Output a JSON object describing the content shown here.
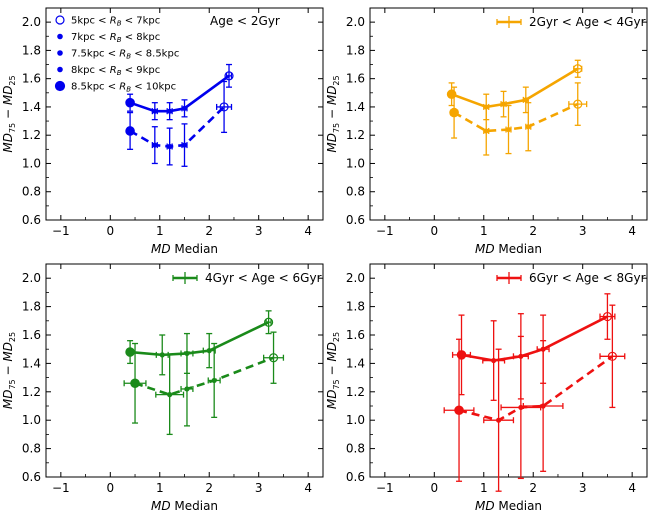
{
  "chart_data": [
    {
      "type": "line",
      "title": "Age < 2Gyr",
      "xlabel": "MD Median",
      "ylabel": "MD75 − MD25",
      "xlim": [
        -1.3,
        4.3
      ],
      "ylim": [
        0.6,
        2.1
      ],
      "xticks": [
        -1,
        0,
        1,
        2,
        3,
        4
      ],
      "yticks": [
        0.6,
        0.8,
        1.0,
        1.2,
        1.4,
        1.6,
        1.8,
        2.0
      ],
      "color": "#0000ee",
      "legend_title": "Age < 2Gyr",
      "series": [
        {
          "name": "upper",
          "style": "solid",
          "points": [
            {
              "x": 0.4,
              "y": 1.43,
              "xerr": 0.05,
              "yerr": 0.06
            },
            {
              "x": 0.9,
              "y": 1.37,
              "xerr": 0.05,
              "yerr": 0.06
            },
            {
              "x": 1.2,
              "y": 1.37,
              "xerr": 0.05,
              "yerr": 0.06
            },
            {
              "x": 1.5,
              "y": 1.39,
              "xerr": 0.05,
              "yerr": 0.06
            },
            {
              "x": 2.4,
              "y": 1.62,
              "xerr": 0.05,
              "yerr": 0.08
            }
          ]
        },
        {
          "name": "lower",
          "style": "dashed",
          "points": [
            {
              "x": 0.4,
              "y": 1.23,
              "xerr": 0.05,
              "yerr": 0.13
            },
            {
              "x": 0.9,
              "y": 1.13,
              "xerr": 0.05,
              "yerr": 0.13
            },
            {
              "x": 1.2,
              "y": 1.12,
              "xerr": 0.05,
              "yerr": 0.13
            },
            {
              "x": 1.5,
              "y": 1.13,
              "xerr": 0.05,
              "yerr": 0.15
            },
            {
              "x": 2.3,
              "y": 1.4,
              "xerr": 0.15,
              "yerr": 0.18
            }
          ]
        }
      ],
      "legend_entries": [
        {
          "label": "5kpc < RB < 7kpc",
          "marker": "open-circle"
        },
        {
          "label": "7kpc < RB < 8kpc",
          "marker": "small-dot"
        },
        {
          "label": "7.5kpc < RB < 8.5kpc",
          "marker": "small-dot"
        },
        {
          "label": "8kpc < RB < 9kpc",
          "marker": "small-dot"
        },
        {
          "label": "8.5kpc < RB < 10kpc",
          "marker": "big-dot"
        }
      ]
    },
    {
      "type": "line",
      "title": "2Gyr < Age < 4Gyr",
      "xlabel": "MD Median",
      "ylabel": "MD75 − MD25",
      "xlim": [
        -1.3,
        4.3
      ],
      "ylim": [
        0.6,
        2.1
      ],
      "xticks": [
        -1,
        0,
        1,
        2,
        3,
        4
      ],
      "yticks": [
        0.6,
        0.8,
        1.0,
        1.2,
        1.4,
        1.6,
        1.8,
        2.0
      ],
      "color": "#f5a500",
      "legend_title": "2Gyr < Age < 4Gyr",
      "series": [
        {
          "name": "upper",
          "style": "solid",
          "points": [
            {
              "x": 0.35,
              "y": 1.49,
              "xerr": 0.05,
              "yerr": 0.08
            },
            {
              "x": 1.05,
              "y": 1.4,
              "xerr": 0.05,
              "yerr": 0.09
            },
            {
              "x": 1.4,
              "y": 1.42,
              "xerr": 0.05,
              "yerr": 0.09
            },
            {
              "x": 1.85,
              "y": 1.45,
              "xerr": 0.05,
              "yerr": 0.09
            },
            {
              "x": 2.9,
              "y": 1.67,
              "xerr": 0.08,
              "yerr": 0.06
            }
          ]
        },
        {
          "name": "lower",
          "style": "dashed",
          "points": [
            {
              "x": 0.4,
              "y": 1.36,
              "xerr": 0.07,
              "yerr": 0.18
            },
            {
              "x": 1.05,
              "y": 1.23,
              "xerr": 0.05,
              "yerr": 0.17
            },
            {
              "x": 1.5,
              "y": 1.24,
              "xerr": 0.05,
              "yerr": 0.17
            },
            {
              "x": 1.9,
              "y": 1.26,
              "xerr": 0.05,
              "yerr": 0.17
            },
            {
              "x": 2.9,
              "y": 1.42,
              "xerr": 0.18,
              "yerr": 0.15
            }
          ]
        }
      ]
    },
    {
      "type": "line",
      "title": "4Gyr < Age < 6Gyr",
      "xlabel": "MD Median",
      "ylabel": "MD75 − MD25",
      "xlim": [
        -1.3,
        4.3
      ],
      "ylim": [
        0.6,
        2.1
      ],
      "xticks": [
        -1,
        0,
        1,
        2,
        3,
        4
      ],
      "yticks": [
        0.6,
        0.8,
        1.0,
        1.2,
        1.4,
        1.6,
        1.8,
        2.0
      ],
      "color": "#1a8a1a",
      "legend_title": "4Gyr < Age < 6Gyr",
      "series": [
        {
          "name": "upper",
          "style": "solid",
          "points": [
            {
              "x": 0.4,
              "y": 1.48,
              "xerr": 0.06,
              "yerr": 0.08
            },
            {
              "x": 1.05,
              "y": 1.46,
              "xerr": 0.12,
              "yerr": 0.14
            },
            {
              "x": 1.55,
              "y": 1.47,
              "xerr": 0.12,
              "yerr": 0.14
            },
            {
              "x": 2.0,
              "y": 1.49,
              "xerr": 0.12,
              "yerr": 0.12
            },
            {
              "x": 3.2,
              "y": 1.69,
              "xerr": 0.05,
              "yerr": 0.08
            }
          ]
        },
        {
          "name": "lower",
          "style": "dashed",
          "points": [
            {
              "x": 0.5,
              "y": 1.26,
              "xerr": 0.22,
              "yerr": 0.28
            },
            {
              "x": 1.2,
              "y": 1.18,
              "xerr": 0.28,
              "yerr": 0.28
            },
            {
              "x": 1.55,
              "y": 1.22,
              "xerr": 0.12,
              "yerr": 0.26
            },
            {
              "x": 2.1,
              "y": 1.28,
              "xerr": 0.12,
              "yerr": 0.26
            },
            {
              "x": 3.3,
              "y": 1.44,
              "xerr": 0.2,
              "yerr": 0.18
            }
          ]
        }
      ]
    },
    {
      "type": "line",
      "title": "6Gyr < Age < 8Gyr",
      "xlabel": "MD Median",
      "ylabel": "MD75 − MD25",
      "xlim": [
        -1.3,
        4.3
      ],
      "ylim": [
        0.6,
        2.1
      ],
      "xticks": [
        -1,
        0,
        1,
        2,
        3,
        4
      ],
      "yticks": [
        0.6,
        0.8,
        1.0,
        1.2,
        1.4,
        1.6,
        1.8,
        2.0
      ],
      "color": "#ee1111",
      "legend_title": "6Gyr < Age < 8Gyr",
      "series": [
        {
          "name": "upper",
          "style": "solid",
          "points": [
            {
              "x": 0.55,
              "y": 1.46,
              "xerr": 0.18,
              "yerr": 0.28
            },
            {
              "x": 1.2,
              "y": 1.42,
              "xerr": 0.22,
              "yerr": 0.28
            },
            {
              "x": 1.75,
              "y": 1.45,
              "xerr": 0.15,
              "yerr": 0.3
            },
            {
              "x": 2.2,
              "y": 1.5,
              "xerr": 0.12,
              "yerr": 0.24
            },
            {
              "x": 3.5,
              "y": 1.73,
              "xerr": 0.15,
              "yerr": 0.16
            }
          ]
        },
        {
          "name": "lower",
          "style": "dashed",
          "points": [
            {
              "x": 0.5,
              "y": 1.07,
              "xerr": 0.3,
              "yerr": 0.5
            },
            {
              "x": 1.3,
              "y": 1.0,
              "xerr": 0.3,
              "yerr": 0.5
            },
            {
              "x": 1.75,
              "y": 1.09,
              "xerr": 0.4,
              "yerr": 0.5
            },
            {
              "x": 2.2,
              "y": 1.1,
              "xerr": 0.4,
              "yerr": 0.46
            },
            {
              "x": 3.6,
              "y": 1.45,
              "xerr": 0.25,
              "yerr": 0.36
            }
          ]
        }
      ]
    }
  ]
}
